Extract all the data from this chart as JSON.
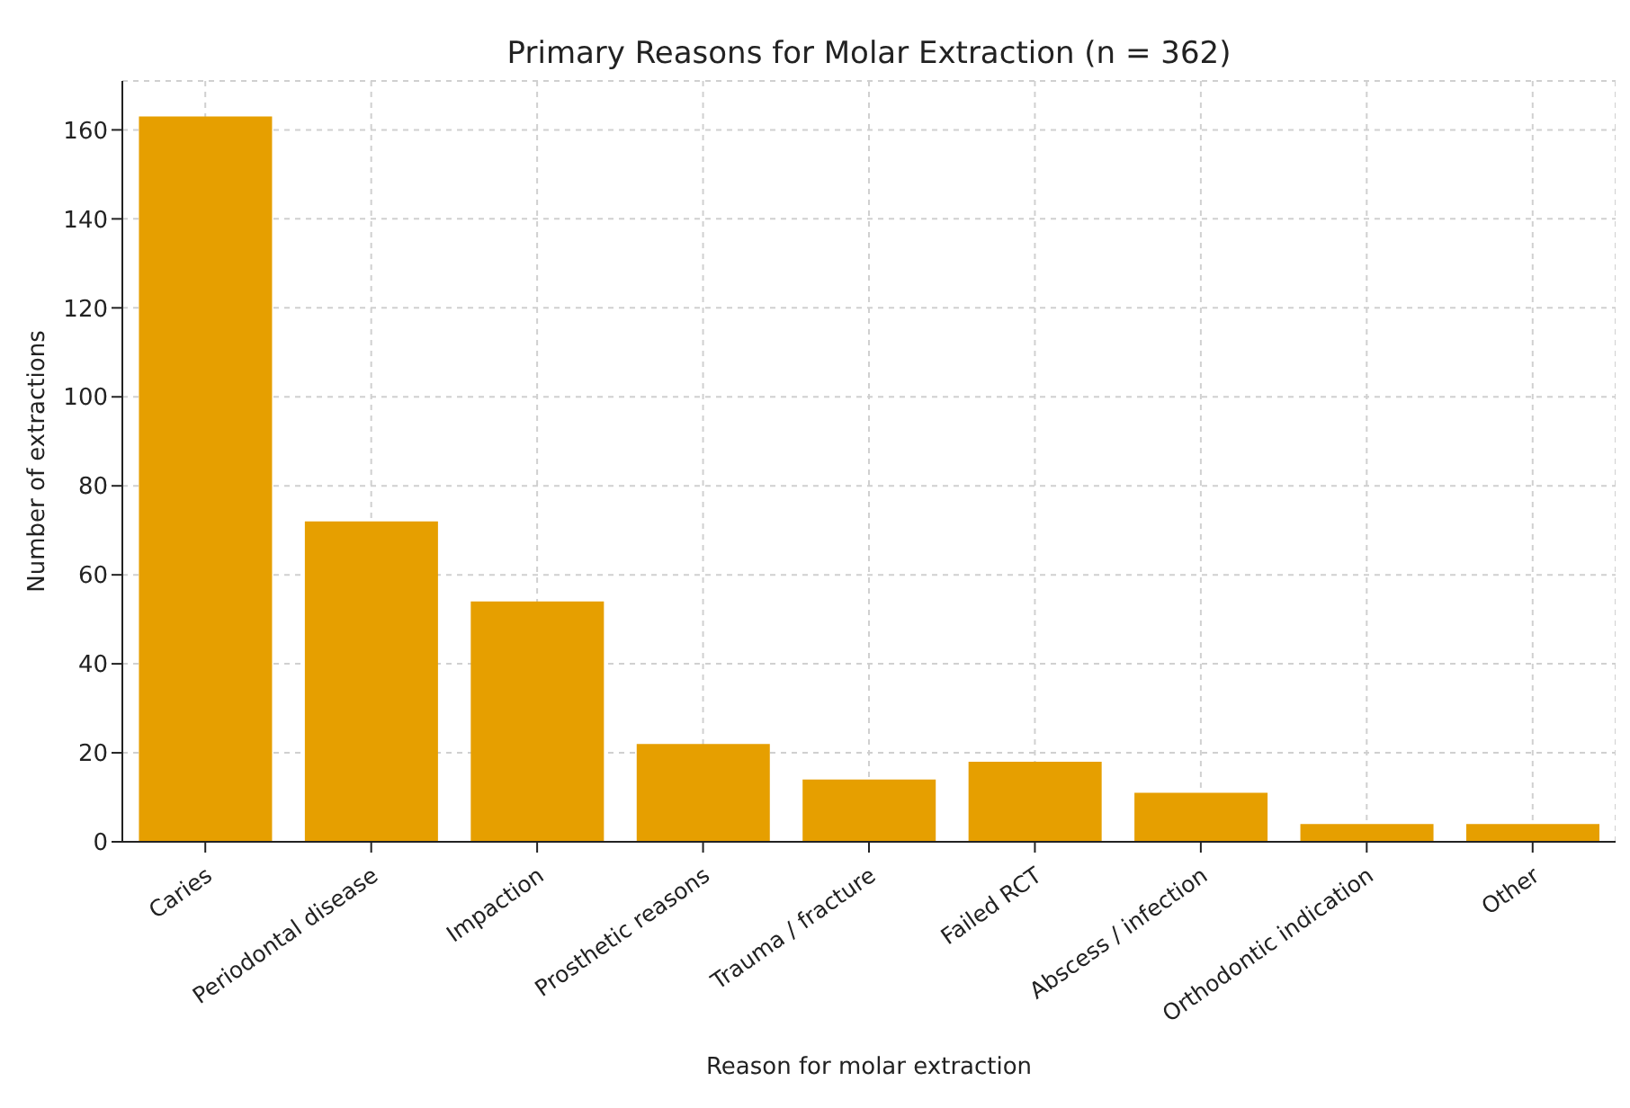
{
  "chart_data": {
    "type": "bar",
    "title": "Primary Reasons for Molar Extraction (n = 362)",
    "xlabel": "Reason for molar extraction",
    "ylabel": "Number of extractions",
    "categories": [
      "Caries",
      "Periodontal disease",
      "Impaction",
      "Prosthetic reasons",
      "Trauma / fracture",
      "Failed RCT",
      "Abscess / infection",
      "Orthodontic indication",
      "Other"
    ],
    "values": [
      163,
      72,
      54,
      22,
      14,
      18,
      11,
      4,
      4
    ],
    "color": "#e69f00",
    "ylim": [
      0,
      171
    ],
    "yticks": [
      0,
      20,
      40,
      60,
      80,
      100,
      120,
      140,
      160
    ],
    "grid": true
  }
}
